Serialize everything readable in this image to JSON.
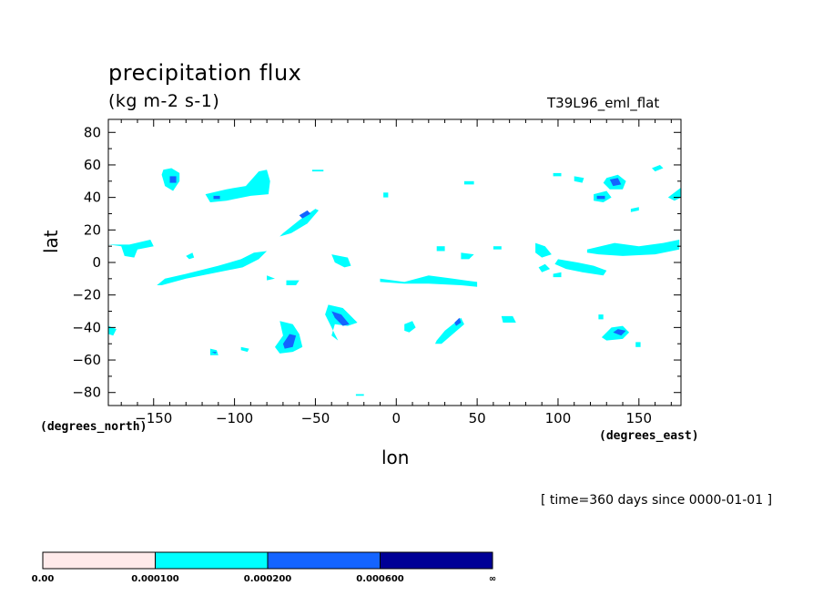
{
  "header": {
    "title": "precipitation flux",
    "units": "(kg m-2 s-1)",
    "run_name": "T39L96_eml_flat"
  },
  "axes": {
    "xlabel": "lon",
    "ylabel": "lat",
    "x_units": "(degrees_east)",
    "y_units": "(degrees_north)"
  },
  "footer": {
    "timestamp": "[ time=360 days since 0000-01-01 ]"
  },
  "chart_data": {
    "type": "heatmap",
    "title": "precipitation flux",
    "subtitle": "(kg m-2 s-1)",
    "xlabel": "lon",
    "ylabel": "lat",
    "xlim": [
      -178,
      176
    ],
    "ylim": [
      -88,
      88
    ],
    "x_ticks": [
      -150,
      -100,
      -50,
      0,
      50,
      100,
      150
    ],
    "y_ticks": [
      80,
      60,
      40,
      20,
      0,
      -20,
      -40,
      -60,
      -80
    ],
    "colorbar": {
      "labels": [
        "0.00",
        "0.000100",
        "0.000200",
        "0.000600",
        "∞"
      ],
      "colors": [
        "#ffeaea",
        "#00ffff",
        "#1464ff",
        "#000096"
      ]
    },
    "regions": [
      {
        "level": 1,
        "points": [
          [
            -178,
            11
          ],
          [
            -170,
            10
          ],
          [
            -168,
            4
          ],
          [
            -162,
            3
          ],
          [
            -160,
            8
          ],
          [
            -150,
            10
          ],
          [
            -152,
            14
          ],
          [
            -165,
            11
          ],
          [
            -176,
            11
          ]
        ]
      },
      {
        "level": 1,
        "points": [
          [
            -178,
            -39
          ],
          [
            -173,
            -41
          ],
          [
            -175,
            -45
          ],
          [
            -178,
            -44
          ]
        ]
      },
      {
        "level": 1,
        "points": [
          [
            -145,
            -14
          ],
          [
            -130,
            -10
          ],
          [
            -105,
            -5
          ],
          [
            -95,
            -3
          ],
          [
            -85,
            2
          ],
          [
            -80,
            7
          ],
          [
            -88,
            6
          ],
          [
            -96,
            2
          ],
          [
            -110,
            -2
          ],
          [
            -130,
            -7
          ],
          [
            -143,
            -10
          ],
          [
            -148,
            -14
          ]
        ]
      },
      {
        "level": 1,
        "points": [
          [
            -128,
            2
          ],
          [
            -125,
            3
          ],
          [
            -126,
            6
          ],
          [
            -130,
            4
          ]
        ]
      },
      {
        "level": 1,
        "points": [
          [
            -144,
            57
          ],
          [
            -139,
            58
          ],
          [
            -134,
            55
          ],
          [
            -134,
            50
          ],
          [
            -138,
            44
          ],
          [
            -143,
            47
          ],
          [
            -145,
            54
          ]
        ]
      },
      {
        "level": 2,
        "points": [
          [
            -140,
            53
          ],
          [
            -136,
            53
          ],
          [
            -136,
            49
          ],
          [
            -140,
            49
          ]
        ]
      },
      {
        "level": 1,
        "points": [
          [
            -118,
            42
          ],
          [
            -105,
            45
          ],
          [
            -93,
            47
          ],
          [
            -85,
            56
          ],
          [
            -80,
            57
          ],
          [
            -78,
            50
          ],
          [
            -79,
            42
          ],
          [
            -90,
            41
          ],
          [
            -105,
            38
          ],
          [
            -115,
            37
          ]
        ]
      },
      {
        "level": 2,
        "points": [
          [
            -113,
            41
          ],
          [
            -109,
            41
          ],
          [
            -109,
            39
          ],
          [
            -113,
            39
          ]
        ]
      },
      {
        "level": 1,
        "points": [
          [
            -70,
            18
          ],
          [
            -60,
            26
          ],
          [
            -50,
            33
          ],
          [
            -48,
            32
          ],
          [
            -55,
            24
          ],
          [
            -65,
            18
          ],
          [
            -72,
            16
          ]
        ]
      },
      {
        "level": 2,
        "points": [
          [
            -60,
            29
          ],
          [
            -55,
            32
          ],
          [
            -53,
            30
          ],
          [
            -58,
            27
          ]
        ]
      },
      {
        "level": 1,
        "points": [
          [
            -72,
            -36
          ],
          [
            -64,
            -38
          ],
          [
            -60,
            -44
          ],
          [
            -58,
            -52
          ],
          [
            -64,
            -55
          ],
          [
            -72,
            -56
          ],
          [
            -75,
            -52
          ],
          [
            -70,
            -45
          ]
        ]
      },
      {
        "level": 2,
        "points": [
          [
            -70,
            -50
          ],
          [
            -66,
            -44
          ],
          [
            -62,
            -45
          ],
          [
            -64,
            -52
          ],
          [
            -69,
            -53
          ]
        ]
      },
      {
        "level": 1,
        "points": [
          [
            -42,
            -26
          ],
          [
            -33,
            -28
          ],
          [
            -24,
            -37
          ],
          [
            -30,
            -39
          ],
          [
            -38,
            -38
          ],
          [
            -40,
            -45
          ],
          [
            -36,
            -48
          ],
          [
            -44,
            -32
          ]
        ]
      },
      {
        "level": 2,
        "points": [
          [
            -40,
            -30
          ],
          [
            -34,
            -32
          ],
          [
            -29,
            -38
          ],
          [
            -33,
            -39
          ],
          [
            -38,
            -34
          ]
        ]
      },
      {
        "level": 1,
        "points": [
          [
            -115,
            -53
          ],
          [
            -111,
            -54
          ],
          [
            -110,
            -57
          ],
          [
            -115,
            -57
          ]
        ]
      },
      {
        "level": 2,
        "points": [
          [
            -114,
            -55
          ],
          [
            -111,
            -55
          ],
          [
            -112,
            -56
          ]
        ]
      },
      {
        "level": 1,
        "points": [
          [
            -96,
            -52
          ],
          [
            -91,
            -53
          ],
          [
            -92,
            -55
          ],
          [
            -96,
            -54
          ]
        ]
      },
      {
        "level": 1,
        "points": [
          [
            -40,
            5
          ],
          [
            -30,
            3
          ],
          [
            -28,
            -2
          ],
          [
            -32,
            -3
          ],
          [
            -38,
            0
          ]
        ]
      },
      {
        "level": 1,
        "points": [
          [
            -80,
            -8
          ],
          [
            -75,
            -10
          ],
          [
            -80,
            -11
          ]
        ]
      },
      {
        "level": 1,
        "points": [
          [
            -68,
            -11
          ],
          [
            -60,
            -11
          ],
          [
            -62,
            -14
          ],
          [
            -68,
            -14
          ]
        ]
      },
      {
        "level": 1,
        "points": [
          [
            -10,
            -10
          ],
          [
            5,
            -12
          ],
          [
            20,
            -8
          ],
          [
            35,
            -10
          ],
          [
            50,
            -12
          ],
          [
            50,
            -15
          ],
          [
            40,
            -14
          ],
          [
            20,
            -13
          ],
          [
            5,
            -13
          ],
          [
            -10,
            -12
          ]
        ]
      },
      {
        "level": 1,
        "points": [
          [
            25,
            -48
          ],
          [
            30,
            -42
          ],
          [
            35,
            -38
          ],
          [
            40,
            -34
          ],
          [
            42,
            -38
          ],
          [
            35,
            -44
          ],
          [
            28,
            -50
          ],
          [
            24,
            -50
          ]
        ]
      },
      {
        "level": 2,
        "points": [
          [
            36,
            -37
          ],
          [
            39,
            -34
          ],
          [
            40,
            -37
          ],
          [
            37,
            -39
          ]
        ]
      },
      {
        "level": 1,
        "points": [
          [
            5,
            -38
          ],
          [
            10,
            -36
          ],
          [
            12,
            -40
          ],
          [
            8,
            -43
          ],
          [
            5,
            -42
          ]
        ]
      },
      {
        "level": 1,
        "points": [
          [
            25,
            10
          ],
          [
            30,
            10
          ],
          [
            30,
            7
          ],
          [
            25,
            7
          ]
        ]
      },
      {
        "level": 1,
        "points": [
          [
            40,
            6
          ],
          [
            48,
            5
          ],
          [
            45,
            2
          ],
          [
            40,
            2
          ]
        ]
      },
      {
        "level": 1,
        "points": [
          [
            60,
            10
          ],
          [
            65,
            10
          ],
          [
            65,
            8
          ],
          [
            60,
            8
          ]
        ]
      },
      {
        "level": 1,
        "points": [
          [
            -52,
            57
          ],
          [
            -45,
            57
          ],
          [
            -45,
            56
          ],
          [
            -52,
            56
          ]
        ]
      },
      {
        "level": 1,
        "points": [
          [
            -8,
            43
          ],
          [
            -5,
            43
          ],
          [
            -5,
            40
          ],
          [
            -8,
            40
          ]
        ]
      },
      {
        "level": 1,
        "points": [
          [
            42,
            50
          ],
          [
            48,
            50
          ],
          [
            48,
            48
          ],
          [
            42,
            48
          ]
        ]
      },
      {
        "level": 1,
        "points": [
          [
            65,
            -33
          ],
          [
            72,
            -33
          ],
          [
            74,
            -37
          ],
          [
            66,
            -37
          ]
        ]
      },
      {
        "level": 1,
        "points": [
          [
            86,
            12
          ],
          [
            92,
            10
          ],
          [
            96,
            5
          ],
          [
            90,
            3
          ],
          [
            86,
            6
          ]
        ]
      },
      {
        "level": 1,
        "points": [
          [
            88,
            -3
          ],
          [
            92,
            -1
          ],
          [
            95,
            -4
          ],
          [
            90,
            -6
          ]
        ]
      },
      {
        "level": 1,
        "points": [
          [
            100,
            2
          ],
          [
            112,
            0
          ],
          [
            122,
            -2
          ],
          [
            130,
            -5
          ],
          [
            128,
            -8
          ],
          [
            115,
            -6
          ],
          [
            105,
            -4
          ],
          [
            98,
            -1
          ]
        ]
      },
      {
        "level": 1,
        "points": [
          [
            118,
            8
          ],
          [
            135,
            12
          ],
          [
            150,
            10
          ],
          [
            165,
            12
          ],
          [
            175,
            14
          ],
          [
            175,
            8
          ],
          [
            160,
            5
          ],
          [
            140,
            4
          ],
          [
            125,
            5
          ],
          [
            118,
            6
          ]
        ]
      },
      {
        "level": 1,
        "points": [
          [
            97,
            -7
          ],
          [
            102,
            -6
          ],
          [
            102,
            -9
          ],
          [
            97,
            -9
          ]
        ]
      },
      {
        "level": 1,
        "points": [
          [
            125,
            -32
          ],
          [
            128,
            -32
          ],
          [
            128,
            -35
          ],
          [
            125,
            -35
          ]
        ]
      },
      {
        "level": 1,
        "points": [
          [
            127,
            -46
          ],
          [
            133,
            -40
          ],
          [
            140,
            -39
          ],
          [
            144,
            -43
          ],
          [
            140,
            -47
          ],
          [
            130,
            -48
          ]
        ]
      },
      {
        "level": 2,
        "points": [
          [
            134,
            -43
          ],
          [
            137,
            -41
          ],
          [
            142,
            -42
          ],
          [
            139,
            -45
          ]
        ]
      },
      {
        "level": 1,
        "points": [
          [
            148,
            -49
          ],
          [
            151,
            -49
          ],
          [
            151,
            -52
          ],
          [
            148,
            -52
          ]
        ]
      },
      {
        "level": 1,
        "points": [
          [
            130,
            52
          ],
          [
            137,
            54
          ],
          [
            142,
            50
          ],
          [
            140,
            45
          ],
          [
            132,
            45
          ],
          [
            128,
            49
          ]
        ]
      },
      {
        "level": 2,
        "points": [
          [
            132,
            51
          ],
          [
            137,
            52
          ],
          [
            139,
            48
          ],
          [
            134,
            47
          ]
        ]
      },
      {
        "level": 1,
        "points": [
          [
            122,
            42
          ],
          [
            130,
            44
          ],
          [
            133,
            40
          ],
          [
            128,
            37
          ],
          [
            122,
            38
          ]
        ]
      },
      {
        "level": 2,
        "points": [
          [
            124,
            41
          ],
          [
            129,
            41
          ],
          [
            129,
            39
          ],
          [
            124,
            39
          ]
        ]
      },
      {
        "level": 1,
        "points": [
          [
            97,
            55
          ],
          [
            102,
            55
          ],
          [
            102,
            53
          ],
          [
            97,
            53
          ]
        ]
      },
      {
        "level": 1,
        "points": [
          [
            110,
            53
          ],
          [
            116,
            52
          ],
          [
            115,
            49
          ],
          [
            110,
            50
          ]
        ]
      },
      {
        "level": 1,
        "points": [
          [
            158,
            58
          ],
          [
            163,
            60
          ],
          [
            165,
            58
          ],
          [
            160,
            56
          ]
        ]
      },
      {
        "level": 1,
        "points": [
          [
            168,
            40
          ],
          [
            176,
            46
          ],
          [
            176,
            40
          ],
          [
            172,
            38
          ]
        ]
      },
      {
        "level": 1,
        "points": [
          [
            145,
            33
          ],
          [
            150,
            34
          ],
          [
            150,
            32
          ],
          [
            145,
            31
          ]
        ]
      },
      {
        "level": 1,
        "points": [
          [
            -25,
            -81
          ],
          [
            -20,
            -81
          ],
          [
            -20,
            -82
          ],
          [
            -25,
            -82
          ]
        ]
      }
    ]
  }
}
